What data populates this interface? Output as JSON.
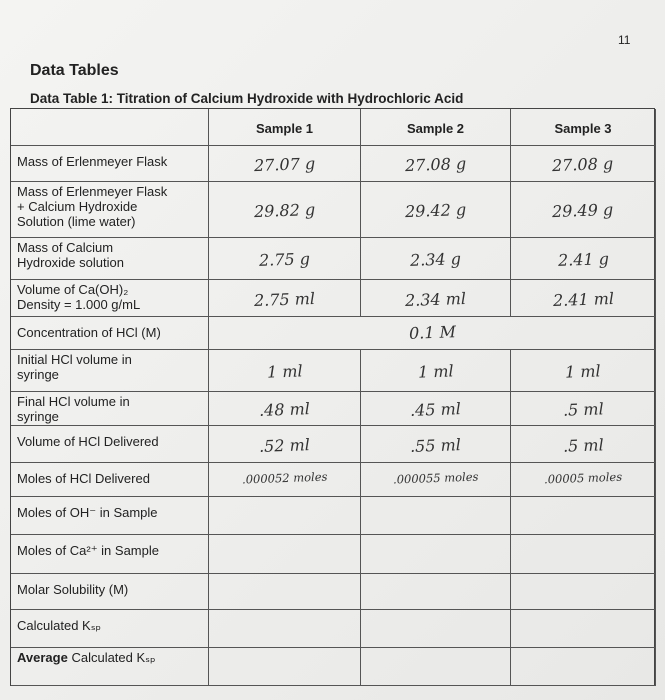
{
  "page_number": "11",
  "title": "Data Tables",
  "table_title": "Data Table 1: Titration of Calcium Hydroxide with Hydrochloric Acid",
  "table": {
    "headers": [
      "Sample 1",
      "Sample 2",
      "Sample 3"
    ],
    "rows": [
      {
        "label": [
          "Mass of Erlenmeyer Flask"
        ],
        "values": [
          "27.07 g",
          "27.08 g",
          "27.08 g"
        ]
      },
      {
        "label": [
          "Mass of Erlenmeyer Flask",
          "+ Calcium Hydroxide",
          "Solution (lime water)"
        ],
        "values": [
          "29.82 g",
          "29.42 g",
          "29.49 g"
        ]
      },
      {
        "label": [
          "Mass of Calcium",
          "Hydroxide solution"
        ],
        "values": [
          "2.75 g",
          "2.34 g",
          "2.41 g"
        ]
      },
      {
        "label": [
          "Volume of Ca(OH)₂",
          "Density = 1.000 g/mL"
        ],
        "values": [
          "2.75 ml",
          "2.34 ml",
          "2.41 ml"
        ]
      },
      {
        "label": [
          "Concentration of HCl (M)"
        ],
        "value": "0.1 M"
      },
      {
        "label": [
          "Initial HCl volume in",
          "syringe"
        ],
        "values": [
          "1 ml",
          "1 ml",
          "1 ml"
        ]
      },
      {
        "label": [
          "Final HCl volume in",
          "syringe"
        ],
        "values": [
          ".48 ml",
          ".45 ml",
          ".5 ml"
        ]
      },
      {
        "label": [
          "Volume of HCl Delivered"
        ],
        "values": [
          ".52 ml",
          ".55 ml",
          ".5 ml"
        ]
      },
      {
        "label": [
          "Moles of HCl Delivered"
        ],
        "values": [
          ".000052 moles",
          ".000055 moles",
          ".00005 moles"
        ]
      },
      {
        "label": [
          "Moles of OH⁻ in Sample"
        ]
      },
      {
        "label": [
          "Moles of Ca²⁺ in Sample"
        ]
      },
      {
        "label": [
          "Molar Solubility (M)"
        ]
      },
      {
        "label": [
          "Calculated Kₛₚ"
        ]
      },
      {
        "label": [
          "Average",
          "Calculated Kₛₚ"
        ]
      }
    ]
  }
}
